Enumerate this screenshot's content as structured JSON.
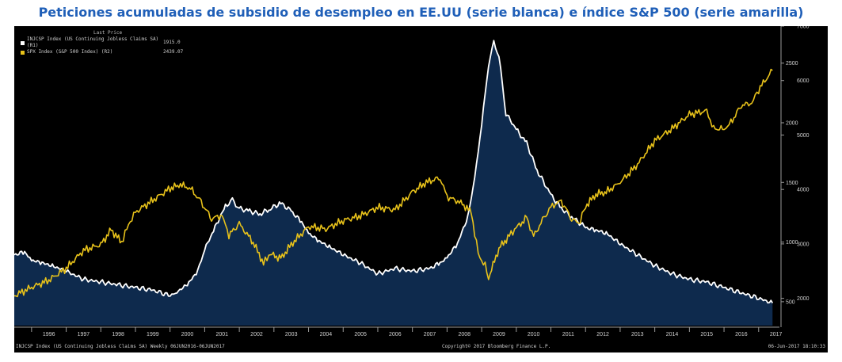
{
  "title": "Peticiones acumuladas de subsidio de desempleo en EE.UU (serie blanca) e índice S&P 500 (serie amarilla)",
  "legend": {
    "header": "Last Price",
    "items": [
      {
        "label": "INJCSP Index (US Continuing Jobless Claims SA)  (R1)",
        "value": "1915.0",
        "color": "#ffffff"
      },
      {
        "label": "SPX Index (S&P 500 Index)  (R2)",
        "value": "2439.07",
        "color": "#e8c21a"
      }
    ]
  },
  "footer": {
    "left": "INJCSP Index (US Continuing Jobless Claims SA)  Weekly 06JUN2016-06JUN2017",
    "center": "Copyright© 2017 Bloomberg Finance L.P.",
    "right": "06-Jun-2017 18:10:33"
  },
  "chart_data": {
    "type": "line",
    "title": "Peticiones acumuladas de subsidio de desempleo en EE.UU (serie blanca) e índice S&P 500 (serie amarilla)",
    "x_tick_labels": [
      "1996",
      "1997",
      "1998",
      "1999",
      "2000",
      "2001",
      "2002",
      "2003",
      "2004",
      "2005",
      "2006",
      "2007",
      "2008",
      "2009",
      "2010",
      "2011",
      "2012",
      "2013",
      "2014",
      "2015",
      "2016",
      "2017"
    ],
    "xlim": [
      1995.5,
      2017.6
    ],
    "axes": {
      "R1": {
        "ylim": [
          1500,
          7000
        ],
        "ticks": [
          2000,
          3000,
          4000,
          5000,
          6000,
          7000
        ],
        "tick_labels": [
          "2000",
          "3000",
          "4000",
          "5000",
          "6000",
          "7000"
        ]
      },
      "R2": {
        "ylim": [
          300,
          2810
        ],
        "ticks": [
          500,
          1000,
          1500,
          2000,
          2500
        ],
        "tick_labels": [
          "500",
          "1000",
          "1500",
          "2000",
          "2500"
        ]
      }
    },
    "series": [
      {
        "name": "INJCSP Index (US Continuing Jobless Claims SA)",
        "axis": "R1",
        "color": "#ffffff",
        "fill": "#0e2a4d",
        "x": [
          1995.5,
          1995.8,
          1996.0,
          1996.3,
          1996.6,
          1997.0,
          1997.5,
          1998.0,
          1998.5,
          1999.0,
          1999.5,
          2000.0,
          2000.2,
          2000.5,
          2000.8,
          2001.0,
          2001.3,
          2001.6,
          2001.8,
          2002.0,
          2002.3,
          2002.6,
          2002.9,
          2003.2,
          2003.5,
          2003.8,
          2004.0,
          2004.3,
          2004.6,
          2005.0,
          2005.5,
          2006.0,
          2006.5,
          2007.0,
          2007.5,
          2007.8,
          2008.0,
          2008.3,
          2008.6,
          2008.8,
          2009.0,
          2009.2,
          2009.35,
          2009.5,
          2009.7,
          2010.0,
          2010.3,
          2010.6,
          2011.0,
          2011.3,
          2011.6,
          2012.0,
          2012.3,
          2012.6,
          2013.0,
          2013.5,
          2014.0,
          2014.5,
          2015.0,
          2015.5,
          2016.0,
          2016.5,
          2017.0,
          2017.4
        ],
        "values": [
          2800,
          2850,
          2700,
          2650,
          2600,
          2500,
          2350,
          2300,
          2250,
          2200,
          2150,
          2050,
          2120,
          2250,
          2500,
          2900,
          3300,
          3700,
          3800,
          3650,
          3600,
          3550,
          3650,
          3750,
          3600,
          3400,
          3200,
          3050,
          2950,
          2800,
          2650,
          2450,
          2550,
          2500,
          2550,
          2650,
          2750,
          3000,
          3500,
          4200,
          5200,
          6300,
          6700,
          6450,
          5400,
          5100,
          4850,
          4350,
          3900,
          3650,
          3500,
          3300,
          3250,
          3200,
          3000,
          2800,
          2600,
          2450,
          2350,
          2300,
          2200,
          2100,
          2000,
          1915
        ]
      },
      {
        "name": "SPX Index (S&P 500 Index)",
        "axis": "R2",
        "color": "#e8c21a",
        "x": [
          1995.5,
          1996.0,
          1996.5,
          1997.0,
          1997.5,
          1998.0,
          1998.3,
          1998.6,
          1998.8,
          1999.0,
          1999.5,
          2000.0,
          2000.3,
          2000.6,
          2000.9,
          2001.2,
          2001.5,
          2001.7,
          2002.0,
          2002.4,
          2002.7,
          2002.9,
          2003.2,
          2003.5,
          2004.0,
          2004.5,
          2005.0,
          2005.5,
          2006.0,
          2006.5,
          2007.0,
          2007.4,
          2007.8,
          2008.0,
          2008.4,
          2008.7,
          2008.9,
          2009.1,
          2009.2,
          2009.5,
          2009.8,
          2010.0,
          2010.3,
          2010.5,
          2010.8,
          2011.0,
          2011.3,
          2011.6,
          2011.8,
          2012.0,
          2012.3,
          2012.6,
          2013.0,
          2013.5,
          2014.0,
          2014.5,
          2015.0,
          2015.5,
          2015.7,
          2016.0,
          2016.2,
          2016.5,
          2016.8,
          2017.0,
          2017.4
        ],
        "values": [
          550,
          620,
          680,
          780,
          930,
          980,
          1100,
          1000,
          1150,
          1250,
          1350,
          1450,
          1480,
          1450,
          1330,
          1200,
          1220,
          1060,
          1150,
          1000,
          820,
          900,
          860,
          980,
          1130,
          1110,
          1180,
          1220,
          1290,
          1270,
          1420,
          1500,
          1540,
          1380,
          1330,
          1250,
          900,
          800,
          700,
          950,
          1050,
          1120,
          1200,
          1050,
          1200,
          1300,
          1340,
          1200,
          1150,
          1300,
          1400,
          1420,
          1500,
          1650,
          1850,
          1950,
          2070,
          2100,
          1950,
          1950,
          2000,
          2150,
          2160,
          2280,
          2439
        ]
      }
    ]
  }
}
